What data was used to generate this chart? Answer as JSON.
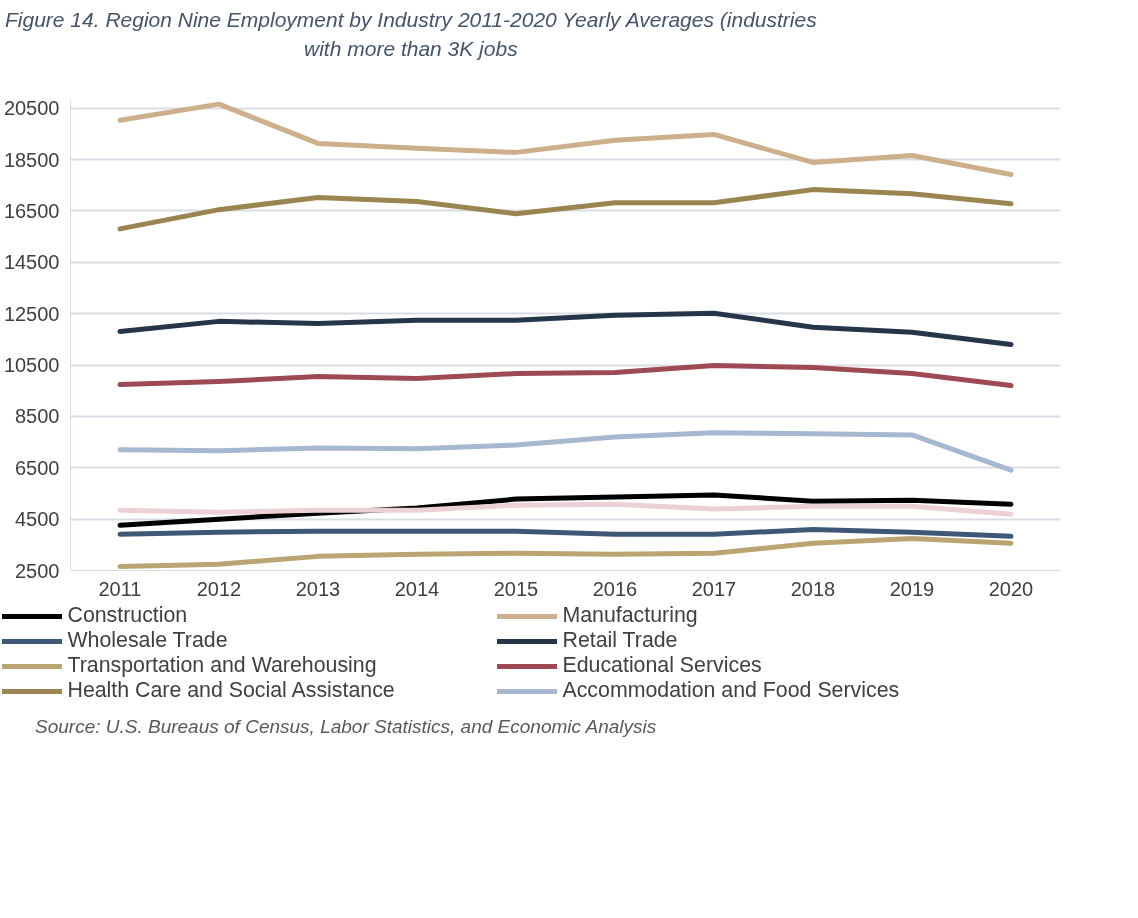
{
  "chart_data": {
    "type": "line",
    "title": "Figure 14. Region Nine Employment by Industry 2011-2020 Yearly Averages (industries\nwith more than 3K jobs",
    "categories": [
      "2011",
      "2012",
      "2013",
      "2014",
      "2015",
      "2016",
      "2017",
      "2018",
      "2019",
      "2020"
    ],
    "series": [
      {
        "name": "Construction",
        "color": "#000000",
        "values": [
          4260,
          4500,
          4730,
          4930,
          5280,
          5360,
          5440,
          5200,
          5240,
          5080
        ]
      },
      {
        "name": "Manufacturing",
        "color": "#cdaf8c",
        "values": [
          20030,
          20660,
          19130,
          18940,
          18780,
          19250,
          19480,
          18390,
          18660,
          17920
        ]
      },
      {
        "name": "Wholesale Trade",
        "color": "#3f5877",
        "values": [
          3910,
          3990,
          4030,
          4030,
          4030,
          3910,
          3910,
          4100,
          3990,
          3830
        ]
      },
      {
        "name": "Retail Trade",
        "color": "#25364a",
        "values": [
          11810,
          12200,
          12120,
          12240,
          12240,
          12440,
          12520,
          11970,
          11780,
          11300
        ]
      },
      {
        "name": "Transportation and Warehousing",
        "color": "#b9a472",
        "values": [
          2660,
          2740,
          3050,
          3130,
          3170,
          3130,
          3170,
          3560,
          3750,
          3560
        ]
      },
      {
        "name": "Educational Services",
        "color": "#9e4a55",
        "values": [
          9740,
          9860,
          10050,
          9980,
          10170,
          10210,
          10480,
          10400,
          10170,
          9700
        ]
      },
      {
        "name": "Health Care and Social Assistance",
        "color": "#9a8550",
        "values": [
          15800,
          16550,
          17020,
          16870,
          16390,
          16820,
          16820,
          17330,
          17170,
          16780
        ]
      },
      {
        "name": "Accommodation and Food Services",
        "color": "#a6b7d0",
        "values": [
          7200,
          7160,
          7270,
          7240,
          7390,
          7700,
          7860,
          7820,
          7780,
          6410
        ]
      },
      {
        "color": "#ecd0d3",
        "values": [
          4850,
          4770,
          4850,
          4850,
          5040,
          5080,
          4890,
          5000,
          5000,
          4690
        ]
      }
    ],
    "ylim": [
      2500,
      20800
    ],
    "yticks": [
      2500,
      4500,
      6500,
      8500,
      10500,
      12500,
      14500,
      16500,
      18500,
      20500
    ],
    "grid": "y",
    "legend": "bottom",
    "marker": "none",
    "line_style": "solid",
    "annotations": [
      "Source: U.S. Bureaus of Census, Labor Statistics, and Economic Analysis"
    ]
  }
}
